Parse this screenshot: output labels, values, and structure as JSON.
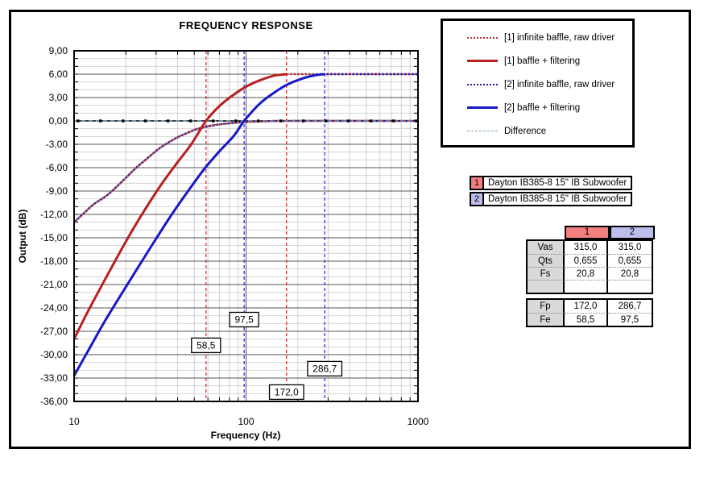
{
  "chart_data": {
    "type": "line",
    "title": "FREQUENCY RESPONSE",
    "xlabel": "Frequency (Hz)",
    "ylabel": "Output (dB)",
    "x_scale": "log",
    "xlim": [
      10,
      1000
    ],
    "ylim": [
      -36,
      9
    ],
    "y_major_step": 3,
    "y_minor_step": 1,
    "grid": true,
    "legend_position": "top-right",
    "y_tick_labels": [
      "9,00",
      "6,00",
      "3,00",
      "0,00",
      "-3,00",
      "-6,00",
      "-9,00",
      "-12,00",
      "-15,00",
      "-18,00",
      "-21,00",
      "-24,00",
      "-27,00",
      "-30,00",
      "-33,00",
      "-36,00"
    ],
    "x_tick_labels": [
      "10",
      "100",
      "1000"
    ],
    "x_tick_values": [
      10,
      100,
      1000
    ],
    "series": [
      {
        "name": "[1] infinite baffle, raw driver",
        "style": "dotted",
        "color": "#C03030",
        "phase": 0,
        "points": [
          [
            10,
            -13.0
          ],
          [
            11.2,
            -12
          ],
          [
            13,
            -10.7
          ],
          [
            15,
            -9.8
          ],
          [
            17,
            -8.8
          ],
          [
            20,
            -7.3
          ],
          [
            23,
            -6
          ],
          [
            27,
            -4.7
          ],
          [
            31,
            -3.6
          ],
          [
            34,
            -3
          ],
          [
            40,
            -2.1
          ],
          [
            46,
            -1.5
          ],
          [
            51,
            -1.1
          ],
          [
            60,
            -0.7
          ],
          [
            70,
            -0.45
          ],
          [
            85,
            -0.25
          ],
          [
            100,
            -0.12
          ],
          [
            130,
            -0.04
          ],
          [
            180,
            0
          ],
          [
            1000,
            0
          ]
        ]
      },
      {
        "name": "[2] infinite baffle, raw driver",
        "style": "dotted",
        "color": "#202098",
        "phase": 2.5,
        "points": [
          [
            10,
            -13.0
          ],
          [
            11.2,
            -12
          ],
          [
            13,
            -10.7
          ],
          [
            15,
            -9.8
          ],
          [
            17,
            -8.8
          ],
          [
            20,
            -7.3
          ],
          [
            23,
            -6
          ],
          [
            27,
            -4.7
          ],
          [
            31,
            -3.6
          ],
          [
            34,
            -3
          ],
          [
            40,
            -2.1
          ],
          [
            46,
            -1.5
          ],
          [
            51,
            -1.1
          ],
          [
            60,
            -0.7
          ],
          [
            70,
            -0.45
          ],
          [
            85,
            -0.25
          ],
          [
            100,
            -0.12
          ],
          [
            130,
            -0.04
          ],
          [
            180,
            0
          ],
          [
            1000,
            0
          ]
        ]
      },
      {
        "name": "Difference",
        "style": "dashed",
        "color": "#6FA0BE",
        "phase": 0,
        "points": [
          [
            10,
            0
          ],
          [
            1000,
            0
          ]
        ]
      },
      {
        "name": "[1] baffle + filtering",
        "style": "solid",
        "color": "#B82020",
        "phase": 0,
        "points": [
          [
            10,
            -28
          ],
          [
            12,
            -24.5
          ],
          [
            15,
            -20.5
          ],
          [
            18,
            -17.3
          ],
          [
            22,
            -13.9
          ],
          [
            27,
            -10.7
          ],
          [
            33,
            -7.8
          ],
          [
            40,
            -5.3
          ],
          [
            48,
            -3.0
          ],
          [
            58.5,
            0
          ],
          [
            70,
            1.9
          ],
          [
            84,
            3.3
          ],
          [
            100,
            4.4
          ],
          [
            120,
            5.2
          ],
          [
            145,
            5.8
          ],
          [
            172,
            6.0
          ]
        ],
        "tail": [
          [
            172,
            6.0
          ],
          [
            1000,
            6.0
          ]
        ]
      },
      {
        "name": "[2] baffle + filtering",
        "style": "solid",
        "color": "#1818C8",
        "phase": 2.5,
        "points": [
          [
            10,
            -32.7
          ],
          [
            12,
            -29.6
          ],
          [
            15,
            -25.8
          ],
          [
            19,
            -22.1
          ],
          [
            24,
            -18.5
          ],
          [
            30,
            -15.1
          ],
          [
            37,
            -12.0
          ],
          [
            46,
            -9.0
          ],
          [
            57,
            -6.2
          ],
          [
            70,
            -3.9
          ],
          [
            85,
            -1.9
          ],
          [
            97.5,
            0
          ],
          [
            120,
            2.2
          ],
          [
            145,
            3.6
          ],
          [
            175,
            4.7
          ],
          [
            210,
            5.4
          ],
          [
            250,
            5.85
          ],
          [
            286.7,
            6.0
          ]
        ],
        "tail": [
          [
            286.7,
            6.0
          ],
          [
            1000,
            6.0
          ]
        ]
      }
    ],
    "vlines": [
      {
        "x": 58.5,
        "color": "#CC2222",
        "label": "58,5",
        "label_db": -28.8
      },
      {
        "x": 172.0,
        "color": "#CC2222",
        "label": "172,0",
        "label_db": -34.8
      },
      {
        "x": 97.5,
        "color": "#2222CC",
        "label": "97,5",
        "label_db": -25.5
      },
      {
        "x": 286.7,
        "color": "#2222CC",
        "label": "286,7",
        "label_db": -31.8
      }
    ]
  },
  "legend": {
    "items": [
      {
        "label": "[1] infinite baffle, raw driver",
        "style": "dotted",
        "color": "#C03030"
      },
      {
        "label": "[1] baffle + filtering",
        "style": "solid",
        "color": "#B82020"
      },
      {
        "label": "[2] infinite baffle, raw driver",
        "style": "dotted",
        "color": "#202098"
      },
      {
        "label": "[2] baffle + filtering",
        "style": "solid",
        "color": "#1818C8"
      },
      {
        "label": "Difference",
        "style": "dashed",
        "color": "#6FA0BE"
      }
    ]
  },
  "drivers": [
    {
      "num": "1",
      "num_bg": "#F47F7F",
      "name": "Dayton IB385-8 15\" IB Subwoofer"
    },
    {
      "num": "2",
      "num_bg": "#BDBDEC",
      "name": "Dayton IB385-8 15\" IB Subwoofer"
    }
  ],
  "param_table": {
    "col_headers": [
      {
        "label": "1",
        "color": "#F47F7F"
      },
      {
        "label": "2",
        "color": "#BDBDEC"
      }
    ],
    "rows1": [
      {
        "label": "Vas",
        "v1": "315,0",
        "v2": "315,0"
      },
      {
        "label": "Qts",
        "v1": "0,655",
        "v2": "0,655"
      },
      {
        "label": "Fs",
        "v1": "20,8",
        "v2": "20,8"
      },
      {
        "label": "",
        "v1": "",
        "v2": ""
      }
    ],
    "rows2": [
      {
        "label": "Fp",
        "v1": "172,0",
        "v2": "286,7"
      },
      {
        "label": "Fe",
        "v1": "58,5",
        "v2": "97,5"
      }
    ]
  }
}
